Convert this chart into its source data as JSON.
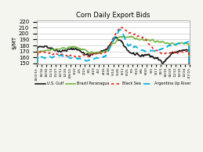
{
  "title": "Corn Daily Export Bids",
  "ylabel": "$/MT",
  "ylim": [
    148,
    222
  ],
  "yticks": [
    150,
    160,
    170,
    180,
    190,
    200,
    210,
    220
  ],
  "xlabel_dates": [
    "10/2/15",
    "10/16",
    "10/30",
    "11/13",
    "11/27",
    "12/11",
    "12/25",
    "1/8/15",
    "1/22",
    "2/5",
    "2/19",
    "3/5",
    "3/19",
    "4/2",
    "4/16",
    "4/30",
    "5/14",
    "5/28",
    "6/11",
    "6/25",
    "7/9",
    "7/23",
    "8/6",
    "8/20",
    "9/3",
    "9/17",
    "10/1",
    "10/15",
    "10/29",
    "11/12",
    "12/10",
    "12/24",
    "1/7/15"
  ],
  "bg_color": "#f5f5f0",
  "plot_bg": "#ffffff",
  "line_colors": {
    "us_gulf": "#1a1a1a",
    "brazil": "#7ab648",
    "black_sea": "#e0291a",
    "argentina": "#00b0e0"
  },
  "legend": [
    {
      "label": "U.S. Gulf",
      "color": "#1a1a1a",
      "ls": "-",
      "dashes": null
    },
    {
      "label": "Brazil Paranagua",
      "color": "#7ab648",
      "ls": "-",
      "dashes": null
    },
    {
      "label": "Black Sea",
      "color": "#e0291a",
      "ls": ":",
      "dashes": [
        2,
        2
      ]
    },
    {
      "label": "Argentina Up River",
      "color": "#00b0e0",
      "ls": "--",
      "dashes": [
        5,
        3
      ]
    }
  ]
}
